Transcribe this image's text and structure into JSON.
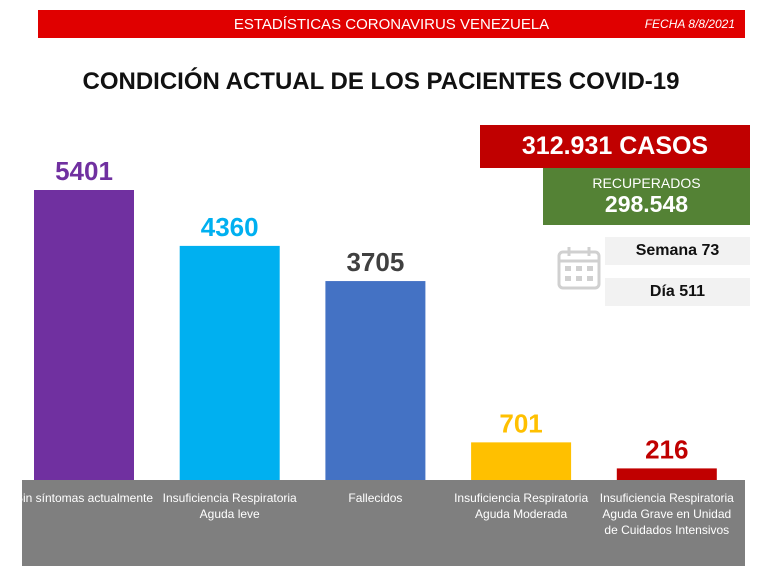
{
  "header": {
    "title": "ESTADÍSTICAS CORONAVIRUS VENEZUELA",
    "date": "FECHA 8/8/2021"
  },
  "stats": {
    "cases": "312.931 CASOS",
    "recovered_label": "RECUPERADOS",
    "recovered": "298.548",
    "week": "Semana 73",
    "day": "Día 511"
  },
  "chart_data": {
    "type": "bar",
    "title": "CONDICIÓN ACTUAL DE LOS PACIENTES COVID-19",
    "categories": [
      "Sin síntomas actualmente",
      "Insuficiencia Respiratoria Aguda leve",
      "Fallecidos",
      "Insuficiencia Respiratoria Aguda Moderada",
      "Insuficiencia Respiratoria Aguda Grave en Unidad de Cuidados Intensivos"
    ],
    "values": [
      5401,
      4360,
      3705,
      701,
      216
    ],
    "colors": [
      "#7030a0",
      "#00b0f0",
      "#4472c4",
      "#ffc000",
      "#c00000"
    ],
    "value_label_colors": [
      "#7030a0",
      "#00b0f0",
      "#404040",
      "#ffc000",
      "#c00000"
    ]
  }
}
